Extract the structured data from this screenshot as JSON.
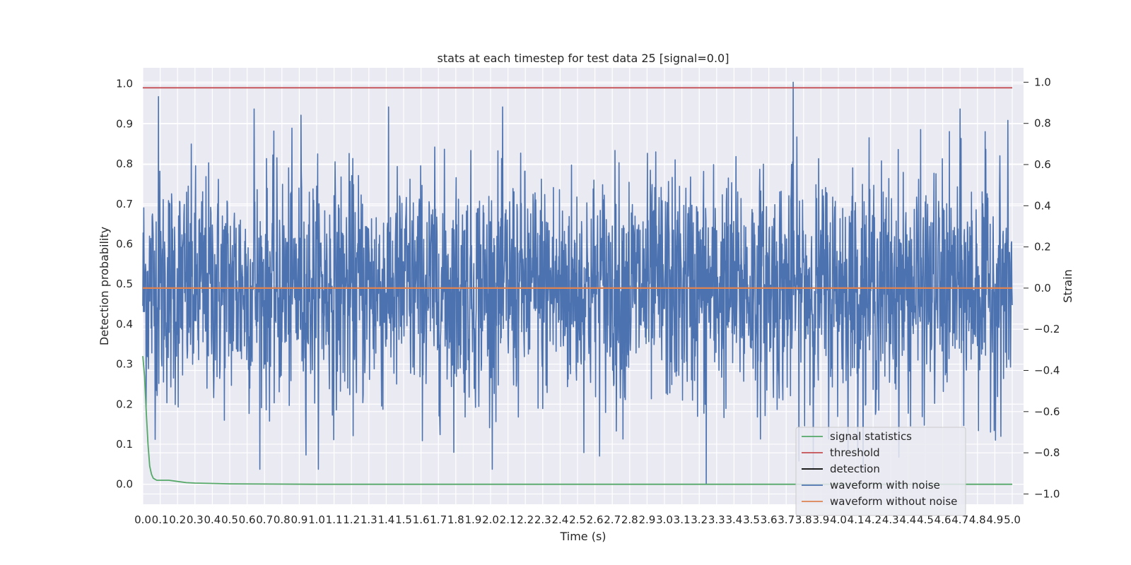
{
  "chart_data": {
    "type": "line",
    "title": "stats at each timestep for test data 25 [signal=0.0]",
    "xlabel": "Time (s)",
    "ylabel": "Detection probability",
    "ylabel_right": "Strain",
    "xlim": [
      0.0,
      5.0
    ],
    "ylim": [
      -0.05,
      1.04
    ],
    "ylim_right": [
      -1.05,
      1.07
    ],
    "x_tick_labels": [
      "0.0",
      "0.1",
      "0.2",
      "0.3",
      "0.4",
      "0.5",
      "0.6",
      "0.7",
      "0.8",
      "0.9",
      "1.0",
      "1.1",
      "1.2",
      "1.3",
      "1.4",
      "1.5",
      "1.6",
      "1.7",
      "1.8",
      "1.9",
      "2.0",
      "2.1",
      "2.2",
      "2.3",
      "2.4",
      "2.5",
      "2.6",
      "2.7",
      "2.8",
      "2.9",
      "3.0",
      "3.1",
      "3.2",
      "3.3",
      "3.4",
      "3.5",
      "3.6",
      "3.7",
      "3.8",
      "3.9",
      "4.0",
      "4.1",
      "4.2",
      "4.3",
      "4.4",
      "4.5",
      "4.6",
      "4.7",
      "4.8",
      "4.9",
      "5.0"
    ],
    "y_tick_labels": [
      "0.0",
      "0.1",
      "0.2",
      "0.3",
      "0.4",
      "0.5",
      "0.6",
      "0.7",
      "0.8",
      "0.9",
      "1.0"
    ],
    "y_right_tick_labels": [
      "−1.0",
      "−0.8",
      "−0.6",
      "−0.4",
      "−0.2",
      "0.0",
      "0.2",
      "0.4",
      "0.6",
      "0.8",
      "1.0"
    ],
    "grid": true,
    "legend_position": "lower-right",
    "series": [
      {
        "name": "signal statistics",
        "axis": "left",
        "color": "#55a868",
        "x": [
          0.0,
          0.01,
          0.02,
          0.03,
          0.04,
          0.05,
          0.06,
          0.08,
          0.1,
          0.15,
          0.2,
          0.25,
          0.3,
          0.4,
          0.5,
          1.0,
          2.0,
          3.0,
          4.0,
          5.0
        ],
        "y": [
          0.32,
          0.27,
          0.18,
          0.1,
          0.045,
          0.025,
          0.015,
          0.01,
          0.01,
          0.01,
          0.007,
          0.004,
          0.003,
          0.002,
          0.001,
          0.0,
          0.0,
          0.0,
          0.0,
          0.0
        ]
      },
      {
        "name": "threshold",
        "axis": "left",
        "color": "#c44e52",
        "x": [
          0.0,
          5.0
        ],
        "y": [
          0.99,
          0.99
        ]
      },
      {
        "name": "detection",
        "axis": "left",
        "color": "#000000",
        "x": [],
        "y": []
      },
      {
        "name": "waveform with noise",
        "axis": "right",
        "color": "#4c72b0",
        "description_range": [
          -0.95,
          1.0
        ],
        "peaks": [
          {
            "x": 0.09,
            "y": 0.93
          },
          {
            "x": 0.64,
            "y": 0.87
          },
          {
            "x": 0.91,
            "y": 0.84
          },
          {
            "x": 3.24,
            "y": -0.95
          },
          {
            "x": 3.74,
            "y": 1.0
          },
          {
            "x": 4.7,
            "y": 0.87
          }
        ],
        "noise_std": 0.28
      },
      {
        "name": "waveform without noise",
        "axis": "right",
        "color": "#dd8452",
        "x": [
          0.0,
          5.0
        ],
        "y": [
          0.0,
          0.0
        ]
      }
    ]
  }
}
